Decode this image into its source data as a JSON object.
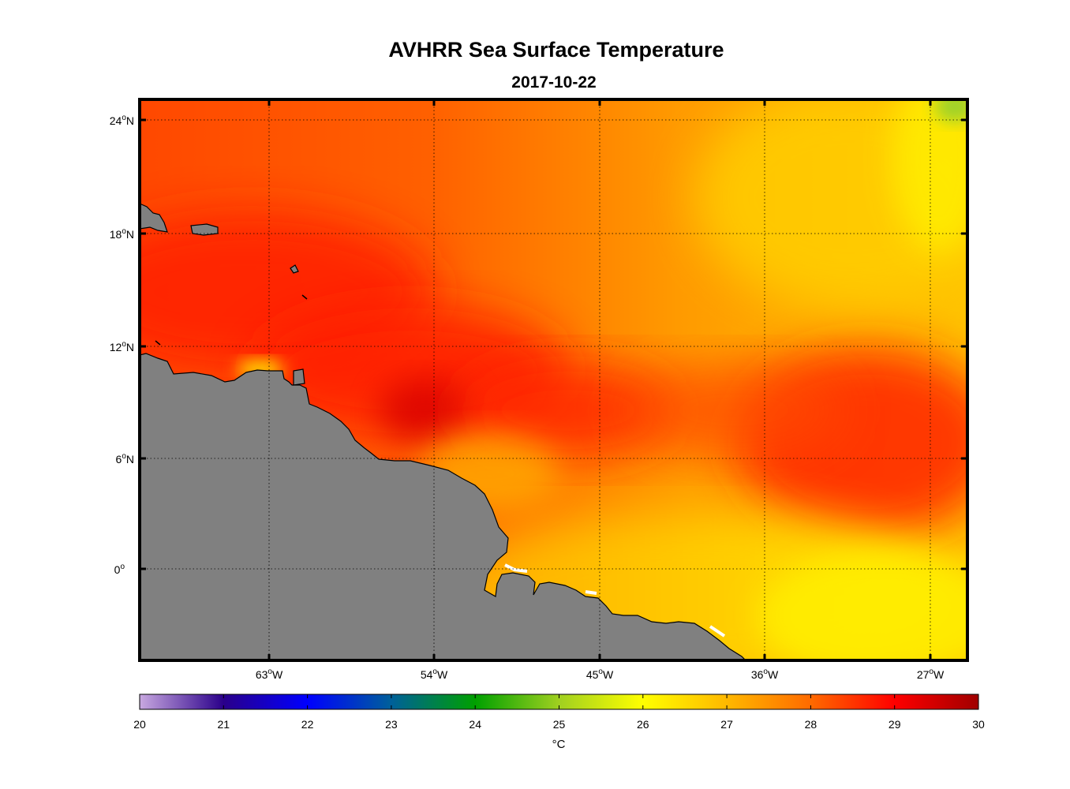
{
  "title": "AVHRR Sea Surface Temperature",
  "subtitle": "2017-10-22",
  "map": {
    "lat_ticks": [
      {
        "base": "24",
        "sup": "o",
        "hemi": "N"
      },
      {
        "base": "18",
        "sup": "o",
        "hemi": "N"
      },
      {
        "base": "12",
        "sup": "o",
        "hemi": "N"
      },
      {
        "base": "6",
        "sup": "o",
        "hemi": "N"
      },
      {
        "base": "0",
        "sup": "o",
        "hemi": ""
      }
    ],
    "lon_ticks": [
      {
        "base": "63",
        "sup": "o",
        "hemi": "W"
      },
      {
        "base": "54",
        "sup": "o",
        "hemi": "W"
      },
      {
        "base": "45",
        "sup": "o",
        "hemi": "W"
      },
      {
        "base": "36",
        "sup": "o",
        "hemi": "W"
      },
      {
        "base": "27",
        "sup": "o",
        "hemi": "W"
      }
    ],
    "land_color": "#808080",
    "grid": "dotted"
  },
  "colorbar": {
    "ticks": [
      "20",
      "21",
      "22",
      "23",
      "24",
      "25",
      "26",
      "27",
      "28",
      "29",
      "30"
    ],
    "label": "°C",
    "stops": [
      {
        "t": 0.0,
        "color": "#c8a8e0"
      },
      {
        "t": 0.1,
        "color": "#2a008a"
      },
      {
        "t": 0.2,
        "color": "#0000ff"
      },
      {
        "t": 0.3,
        "color": "#00609a"
      },
      {
        "t": 0.4,
        "color": "#00a000"
      },
      {
        "t": 0.5,
        "color": "#a0d020"
      },
      {
        "t": 0.6,
        "color": "#ffff00"
      },
      {
        "t": 0.7,
        "color": "#ffb800"
      },
      {
        "t": 0.8,
        "color": "#ff6a00"
      },
      {
        "t": 0.9,
        "color": "#ff0000"
      },
      {
        "t": 1.0,
        "color": "#a00000"
      }
    ]
  }
}
